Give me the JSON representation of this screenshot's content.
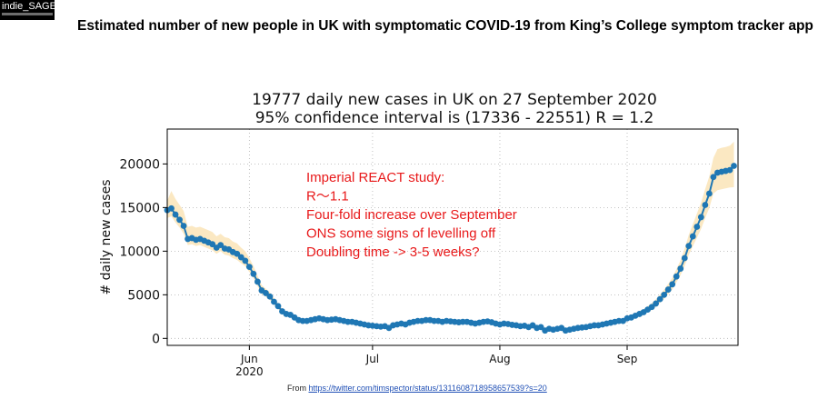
{
  "logo": {
    "text": "indie_SAGE"
  },
  "slide_title": "Estimated number of new people in UK with symptomatic COVID-19 from King’s College symptom tracker app",
  "source": {
    "prefix": "From ",
    "url": "https://twitter.com/timspector/status/1311608718958657539?s=20"
  },
  "colors": {
    "series": "#1f77b4",
    "band": "#fbe8c2",
    "annotation": "#e8191a"
  },
  "chart_data": {
    "type": "line",
    "title": "19777 daily new cases in UK on 27 September 2020",
    "subtitle": "95% confidence interval is (17336 - 22551) R = 1.2",
    "ylabel": "# daily new cases",
    "xlabel": "",
    "ylim": [
      -800,
      24000
    ],
    "xlim": [
      "2020-05-12",
      "2020-09-28"
    ],
    "yticks": [
      0,
      5000,
      10000,
      15000,
      20000
    ],
    "ytick_labels": [
      "0",
      "5000",
      "10000",
      "15000",
      "20000"
    ],
    "xticks": [
      {
        "date": "2020-06-01",
        "label": "Jun",
        "sublabel": "2020"
      },
      {
        "date": "2020-07-01",
        "label": "Jul",
        "sublabel": ""
      },
      {
        "date": "2020-08-01",
        "label": "Aug",
        "sublabel": ""
      },
      {
        "date": "2020-09-01",
        "label": "Sep",
        "sublabel": ""
      }
    ],
    "grid": true,
    "series": [
      {
        "x": [
          "2020-05-12",
          "2020-05-13",
          "2020-05-14",
          "2020-05-15",
          "2020-05-16",
          "2020-05-17",
          "2020-05-18",
          "2020-05-19",
          "2020-05-20",
          "2020-05-21",
          "2020-05-22",
          "2020-05-23",
          "2020-05-24",
          "2020-05-25",
          "2020-05-26",
          "2020-05-27",
          "2020-05-28",
          "2020-05-29",
          "2020-05-30",
          "2020-05-31",
          "2020-06-01",
          "2020-06-02",
          "2020-06-03",
          "2020-06-04",
          "2020-06-05",
          "2020-06-06",
          "2020-06-07",
          "2020-06-08",
          "2020-06-09",
          "2020-06-10",
          "2020-06-11",
          "2020-06-12",
          "2020-06-13",
          "2020-06-14",
          "2020-06-15",
          "2020-06-16",
          "2020-06-17",
          "2020-06-18",
          "2020-06-19",
          "2020-06-20",
          "2020-06-21",
          "2020-06-22",
          "2020-06-23",
          "2020-06-24",
          "2020-06-25",
          "2020-06-26",
          "2020-06-27",
          "2020-06-28",
          "2020-06-29",
          "2020-06-30",
          "2020-07-01",
          "2020-07-02",
          "2020-07-03",
          "2020-07-04",
          "2020-07-05",
          "2020-07-06",
          "2020-07-07",
          "2020-07-08",
          "2020-07-09",
          "2020-07-10",
          "2020-07-11",
          "2020-07-12",
          "2020-07-13",
          "2020-07-14",
          "2020-07-15",
          "2020-07-16",
          "2020-07-17",
          "2020-07-18",
          "2020-07-19",
          "2020-07-20",
          "2020-07-21",
          "2020-07-22",
          "2020-07-23",
          "2020-07-24",
          "2020-07-25",
          "2020-07-26",
          "2020-07-27",
          "2020-07-28",
          "2020-07-29",
          "2020-07-30",
          "2020-07-31",
          "2020-08-01",
          "2020-08-02",
          "2020-08-03",
          "2020-08-04",
          "2020-08-05",
          "2020-08-06",
          "2020-08-07",
          "2020-08-08",
          "2020-08-09",
          "2020-08-10",
          "2020-08-11",
          "2020-08-12",
          "2020-08-13",
          "2020-08-14",
          "2020-08-15",
          "2020-08-16",
          "2020-08-17",
          "2020-08-18",
          "2020-08-19",
          "2020-08-20",
          "2020-08-21",
          "2020-08-22",
          "2020-08-23",
          "2020-08-24",
          "2020-08-25",
          "2020-08-26",
          "2020-08-27",
          "2020-08-28",
          "2020-08-29",
          "2020-08-30",
          "2020-08-31",
          "2020-09-01",
          "2020-09-02",
          "2020-09-03",
          "2020-09-04",
          "2020-09-05",
          "2020-09-06",
          "2020-09-07",
          "2020-09-08",
          "2020-09-09",
          "2020-09-10",
          "2020-09-11",
          "2020-09-12",
          "2020-09-13",
          "2020-09-14",
          "2020-09-15",
          "2020-09-16",
          "2020-09-17",
          "2020-09-18",
          "2020-09-19",
          "2020-09-20",
          "2020-09-21",
          "2020-09-22",
          "2020-09-23",
          "2020-09-24",
          "2020-09-25",
          "2020-09-26",
          "2020-09-27"
        ],
        "y": [
          14700,
          14900,
          14200,
          13600,
          12900,
          11400,
          11500,
          11300,
          11400,
          11200,
          11000,
          10800,
          10400,
          10700,
          10300,
          10200,
          9900,
          9700,
          9300,
          8900,
          8200,
          7400,
          6500,
          5500,
          5200,
          4800,
          4200,
          3700,
          3100,
          2800,
          2700,
          2400,
          2100,
          2000,
          2000,
          2100,
          2200,
          2300,
          2200,
          2100,
          2150,
          2200,
          2100,
          2000,
          1900,
          1900,
          1800,
          1700,
          1600,
          1500,
          1450,
          1400,
          1350,
          1400,
          1200,
          1500,
          1600,
          1700,
          1600,
          1800,
          1900,
          2000,
          2000,
          2100,
          2100,
          2000,
          2000,
          1900,
          2000,
          1950,
          1900,
          1850,
          1900,
          1900,
          1800,
          1700,
          1800,
          1900,
          1950,
          1850,
          1700,
          1600,
          1700,
          1650,
          1550,
          1500,
          1400,
          1450,
          1300,
          1500,
          1200,
          1300,
          900,
          1100,
          1000,
          1100,
          1200,
          900,
          1000,
          1100,
          1200,
          1250,
          1300,
          1400,
          1500,
          1500,
          1600,
          1700,
          1800,
          1900,
          2000,
          2000,
          2300,
          2400,
          2600,
          2800,
          3000,
          3300,
          3600,
          4000,
          4500,
          5000,
          5600,
          6200,
          7100,
          8000,
          9200,
          10600,
          11700,
          12800,
          13900,
          15300,
          16600,
          18500,
          19000,
          19100,
          19200,
          19300,
          19777
        ],
        "lower": [
          13800,
          14000,
          13300,
          12700,
          12000,
          10700,
          10800,
          10600,
          10700,
          10500,
          10300,
          10100,
          9700,
          10000,
          9600,
          9500,
          9200,
          9000,
          8600,
          8300,
          7600,
          6900,
          6000,
          5100,
          4800,
          4400,
          3850,
          3400,
          2850,
          2550,
          2450,
          2200,
          1900,
          1820,
          1820,
          1900,
          2000,
          2100,
          2000,
          1900,
          1950,
          2000,
          1900,
          1820,
          1720,
          1720,
          1630,
          1540,
          1450,
          1360,
          1310,
          1270,
          1220,
          1270,
          1080,
          1360,
          1450,
          1540,
          1450,
          1630,
          1720,
          1820,
          1820,
          1900,
          1900,
          1820,
          1820,
          1720,
          1820,
          1770,
          1720,
          1680,
          1720,
          1720,
          1630,
          1540,
          1630,
          1720,
          1770,
          1680,
          1540,
          1450,
          1540,
          1500,
          1400,
          1360,
          1270,
          1310,
          1170,
          1360,
          1080,
          1170,
          800,
          990,
          900,
          990,
          1080,
          800,
          900,
          990,
          1080,
          1130,
          1170,
          1270,
          1360,
          1360,
          1450,
          1540,
          1630,
          1720,
          1820,
          1820,
          2090,
          2180,
          2360,
          2540,
          2720,
          3000,
          3260,
          3630,
          4080,
          4530,
          5070,
          5610,
          6420,
          7230,
          8310,
          9570,
          10560,
          11550,
          12540,
          13800,
          14970,
          16600,
          17000,
          17100,
          17200,
          17300,
          17336
        ],
        "upper": [
          15800,
          16900,
          16000,
          15300,
          14600,
          12800,
          12900,
          12700,
          12800,
          12600,
          12400,
          12200,
          11700,
          12000,
          11600,
          11500,
          11100,
          10900,
          10400,
          10000,
          9200,
          8300,
          7200,
          6100,
          5700,
          5300,
          4600,
          4050,
          3400,
          3100,
          2950,
          2650,
          2300,
          2200,
          2200,
          2300,
          2420,
          2530,
          2420,
          2300,
          2360,
          2420,
          2300,
          2200,
          2090,
          2090,
          1980,
          1870,
          1760,
          1650,
          1600,
          1540,
          1490,
          1540,
          1320,
          1650,
          1760,
          1870,
          1760,
          1980,
          2090,
          2200,
          2200,
          2310,
          2310,
          2200,
          2200,
          2090,
          2200,
          2150,
          2090,
          2040,
          2090,
          2090,
          1980,
          1870,
          1980,
          2090,
          2150,
          2040,
          1870,
          1760,
          1870,
          1820,
          1710,
          1650,
          1540,
          1600,
          1430,
          1650,
          1320,
          1430,
          1010,
          1230,
          1120,
          1230,
          1340,
          1010,
          1120,
          1230,
          1340,
          1400,
          1450,
          1560,
          1680,
          1680,
          1790,
          1900,
          2010,
          2120,
          2240,
          2240,
          2570,
          2680,
          2900,
          3130,
          3350,
          3690,
          4020,
          4470,
          5030,
          5590,
          6260,
          6930,
          7940,
          8940,
          10290,
          11860,
          13080,
          14320,
          15550,
          17120,
          18570,
          20690,
          21700,
          21850,
          21950,
          22100,
          22551
        ]
      }
    ],
    "annotation": {
      "lines": [
        "Imperial REACT study:",
        "R〜1.1",
        "Four-fold increase over September",
        "ONS some signs of levelling off",
        "Doubling time -> 3-5 weeks?"
      ]
    }
  }
}
